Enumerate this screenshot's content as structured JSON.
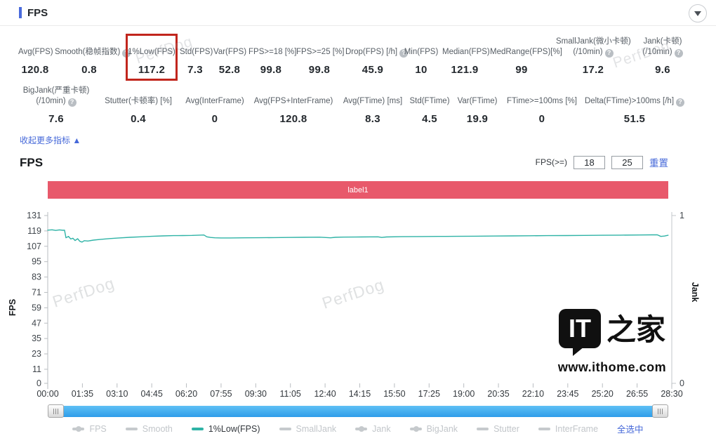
{
  "header": {
    "title": "FPS"
  },
  "colors": {
    "accent_blue": "#4568d9",
    "highlight_red": "#c1261d",
    "banner_pink": "#e8596b",
    "line_teal": "#2fb3a6",
    "legend_inactive": "#c6cacd"
  },
  "metrics": {
    "row1": [
      {
        "label": "Avg(FPS)",
        "value": "120.8"
      },
      {
        "label": "Smooth(稳帧指数)",
        "value": "0.8",
        "help": true
      },
      {
        "label": "1%Low(FPS)",
        "value": "117.2",
        "highlight": true
      },
      {
        "label": "Std(FPS)",
        "value": "7.3"
      },
      {
        "label": "Var(FPS)",
        "value": "52.8"
      },
      {
        "label": "FPS>=18 [%]",
        "value": "99.8"
      },
      {
        "label": "FPS>=25 [%]",
        "value": "99.8"
      },
      {
        "label": "Drop(FPS) [/h]",
        "value": "45.9",
        "help": true
      },
      {
        "label": "Min(FPS)",
        "value": "10"
      },
      {
        "label": "Median(FPS)",
        "value": "121.9"
      },
      {
        "label": "MedRange(FPS)[%]",
        "value": "99"
      },
      {
        "label": "SmallJank(微小卡顿)",
        "label2": "(/10min)",
        "value": "17.2",
        "help": true
      },
      {
        "label": "Jank(卡顿)",
        "label2": "(/10min)",
        "value": "9.6",
        "help": true
      }
    ],
    "row2": [
      {
        "label": "BigJank(严重卡顿)",
        "label2": "(/10min)",
        "value": "7.6",
        "help": true
      },
      {
        "label": "Stutter(卡顿率) [%]",
        "value": "0.4"
      },
      {
        "label": "Avg(InterFrame)",
        "value": "0"
      },
      {
        "label": "Avg(FPS+InterFrame)",
        "value": "120.8"
      },
      {
        "label": "Avg(FTime) [ms]",
        "value": "8.3"
      },
      {
        "label": "Std(FTime)",
        "value": "4.5"
      },
      {
        "label": "Var(FTime)",
        "value": "19.9"
      },
      {
        "label": "FTime>=100ms [%]",
        "value": "0"
      },
      {
        "label": "Delta(FTime)>100ms [/h]",
        "value": "51.5",
        "help": true
      }
    ],
    "collapse_link": "收起更多指标 ▲"
  },
  "chart_section": {
    "title": "FPS",
    "filter_label": "FPS(>=)",
    "threshold1": "18",
    "threshold2": "25",
    "reset_label": "重置"
  },
  "chart_data": {
    "type": "line",
    "title": "label1",
    "banner_color": "#e8596b",
    "grid": false,
    "legend_position": "bottom",
    "left_axis": {
      "label": "FPS",
      "ticks": [
        0,
        11,
        23,
        35,
        47,
        59,
        71,
        83,
        95,
        107,
        119,
        131
      ],
      "range": [
        0,
        131
      ]
    },
    "right_axis": {
      "label": "Jank",
      "ticks": [
        0,
        1
      ],
      "range": [
        0,
        1
      ]
    },
    "x_tick_labels": [
      "00:00",
      "01:35",
      "03:10",
      "04:45",
      "06:20",
      "07:55",
      "09:30",
      "11:05",
      "12:40",
      "14:15",
      "15:50",
      "17:25",
      "19:00",
      "20:35",
      "22:10",
      "23:45",
      "25:20",
      "26:55",
      "28:30"
    ],
    "x_tick_interval_seconds": 95,
    "x_range_seconds": [
      0,
      1710
    ],
    "series": [
      {
        "name": "1%Low(FPS)",
        "color": "#2fb3a6",
        "points": [
          [
            0,
            119.6
          ],
          [
            12,
            119.9
          ],
          [
            22,
            119.4
          ],
          [
            32,
            119.8
          ],
          [
            42,
            119.5
          ],
          [
            46,
            119.6
          ],
          [
            50,
            113.6
          ],
          [
            57,
            114.7
          ],
          [
            63,
            112.7
          ],
          [
            69,
            113.3
          ],
          [
            75,
            111.5
          ],
          [
            82,
            112.9
          ],
          [
            88,
            110.9
          ],
          [
            94,
            110.3
          ],
          [
            100,
            111.4
          ],
          [
            110,
            111.1
          ],
          [
            125,
            111.8
          ],
          [
            145,
            112.4
          ],
          [
            170,
            113.0
          ],
          [
            195,
            113.5
          ],
          [
            225,
            114.0
          ],
          [
            255,
            114.4
          ],
          [
            285,
            114.8
          ],
          [
            315,
            115.1
          ],
          [
            345,
            115.3
          ],
          [
            370,
            115.4
          ],
          [
            395,
            115.5
          ],
          [
            415,
            115.7
          ],
          [
            428,
            115.8
          ],
          [
            436,
            114.4
          ],
          [
            446,
            113.9
          ],
          [
            458,
            113.6
          ],
          [
            475,
            113.5
          ],
          [
            500,
            113.5
          ],
          [
            540,
            113.6
          ],
          [
            580,
            113.7
          ],
          [
            620,
            113.8
          ],
          [
            660,
            113.9
          ],
          [
            700,
            114.0
          ],
          [
            745,
            114.1
          ],
          [
            775,
            113.6
          ],
          [
            788,
            114.0
          ],
          [
            810,
            114.2
          ],
          [
            860,
            114.3
          ],
          [
            905,
            114.4
          ],
          [
            915,
            113.9
          ],
          [
            928,
            114.3
          ],
          [
            970,
            114.5
          ],
          [
            1020,
            114.6
          ],
          [
            1070,
            114.7
          ],
          [
            1120,
            114.8
          ],
          [
            1170,
            114.9
          ],
          [
            1220,
            115.0
          ],
          [
            1270,
            115.1
          ],
          [
            1320,
            115.2
          ],
          [
            1370,
            115.3
          ],
          [
            1420,
            115.4
          ],
          [
            1470,
            115.5
          ],
          [
            1520,
            115.6
          ],
          [
            1570,
            115.7
          ],
          [
            1620,
            115.8
          ],
          [
            1655,
            115.9
          ],
          [
            1670,
            116.0
          ],
          [
            1680,
            114.7
          ],
          [
            1690,
            115.0
          ],
          [
            1700,
            115.6
          ]
        ]
      }
    ]
  },
  "legend": {
    "items": [
      {
        "label": "FPS",
        "marker": "line-dot",
        "active": false
      },
      {
        "label": "Smooth",
        "marker": "dash",
        "active": false
      },
      {
        "label": "1%Low(FPS)",
        "marker": "dash",
        "active": true
      },
      {
        "label": "SmallJank",
        "marker": "dash",
        "active": false
      },
      {
        "label": "Jank",
        "marker": "line-dot",
        "active": false
      },
      {
        "label": "BigJank",
        "marker": "line-dot",
        "active": false
      },
      {
        "label": "Stutter",
        "marker": "dash",
        "active": false
      },
      {
        "label": "InterFrame",
        "marker": "dash",
        "active": false
      }
    ],
    "select_all": "全选中"
  },
  "watermarks": {
    "perfdog": "PerfDog",
    "ithome_badge": "IT",
    "ithome_cn": "之家",
    "ithome_url": "www.ithome.com"
  }
}
